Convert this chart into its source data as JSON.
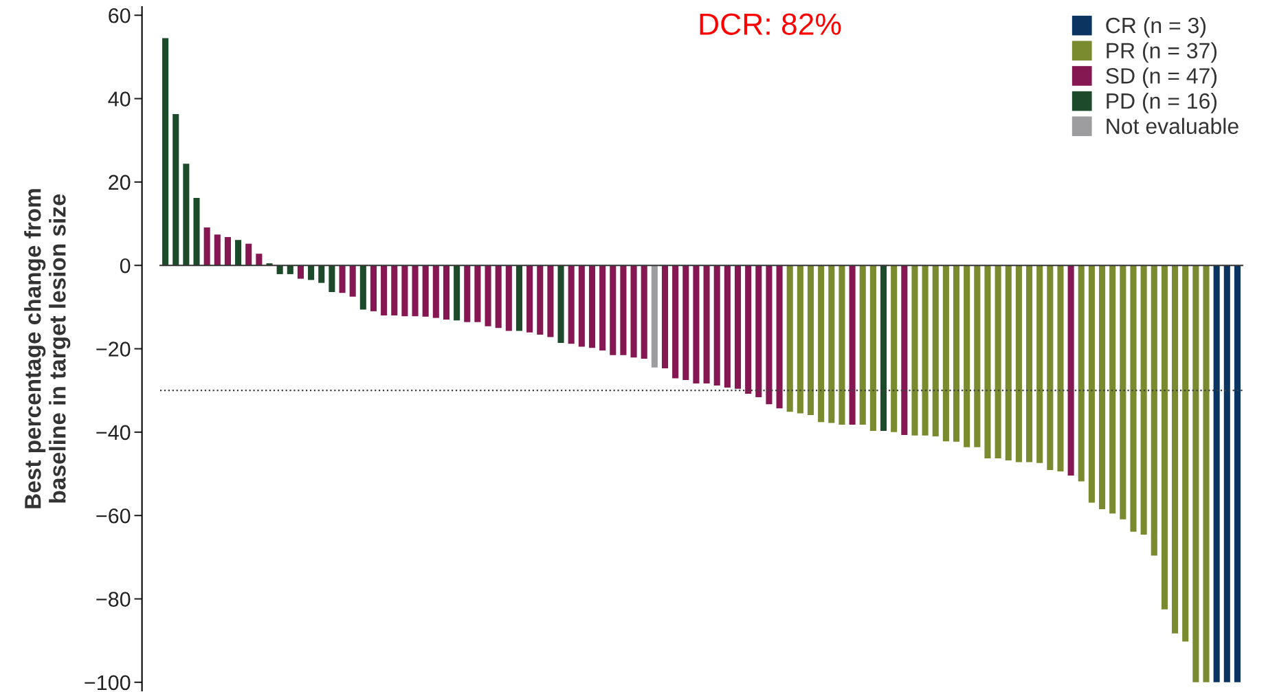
{
  "chart_data": {
    "type": "bar",
    "ylabel": "Best percentage change from\nbaseline in target lesion size",
    "annotations": [
      "DCR: 82%"
    ],
    "categories": [
      null,
      null,
      null,
      null,
      null,
      null,
      null,
      null,
      null,
      null,
      null,
      null,
      null,
      null,
      null,
      null,
      null,
      null,
      null,
      null,
      null,
      null,
      null,
      null,
      null,
      null,
      null,
      null,
      null,
      null,
      null,
      null,
      null,
      null,
      null,
      null,
      null,
      null,
      null,
      null,
      null,
      null,
      null,
      null,
      null,
      null,
      null,
      null,
      null,
      null,
      null,
      null,
      null,
      null,
      null,
      null,
      null,
      null,
      null,
      null,
      null,
      null,
      null,
      null,
      null,
      null,
      null,
      null,
      null,
      null,
      null,
      null,
      null,
      null,
      null,
      null,
      null,
      null,
      null,
      null,
      null,
      null,
      null,
      null,
      null,
      null,
      null,
      null,
      null,
      null,
      null,
      null,
      null,
      null,
      null,
      null,
      null,
      null,
      null,
      null,
      null,
      null,
      null,
      null
    ],
    "series": [
      {
        "name": "CR (n = 3)",
        "color": "#0b3560",
        "values": [
          null,
          null,
          null,
          null,
          null,
          null,
          null,
          null,
          null,
          null,
          null,
          null,
          null,
          null,
          null,
          null,
          null,
          null,
          null,
          null,
          null,
          null,
          null,
          null,
          null,
          null,
          null,
          null,
          null,
          null,
          null,
          null,
          null,
          null,
          null,
          null,
          null,
          null,
          null,
          null,
          null,
          null,
          null,
          null,
          null,
          null,
          null,
          null,
          null,
          null,
          null,
          null,
          null,
          null,
          null,
          null,
          null,
          null,
          null,
          null,
          null,
          null,
          null,
          null,
          null,
          null,
          null,
          null,
          null,
          null,
          null,
          null,
          null,
          null,
          null,
          null,
          null,
          null,
          null,
          null,
          null,
          null,
          null,
          null,
          null,
          null,
          null,
          null,
          null,
          null,
          null,
          null,
          null,
          null,
          null,
          null,
          null,
          null,
          null,
          null,
          null,
          -100,
          -100,
          -100
        ]
      },
      {
        "name": "PR (n = 37)",
        "color": "#7a8a2e",
        "values": [
          null,
          null,
          null,
          null,
          null,
          null,
          null,
          null,
          null,
          null,
          null,
          null,
          null,
          null,
          null,
          null,
          null,
          null,
          null,
          null,
          null,
          null,
          null,
          null,
          null,
          null,
          null,
          null,
          null,
          null,
          null,
          null,
          null,
          null,
          null,
          null,
          null,
          null,
          null,
          null,
          null,
          null,
          null,
          null,
          null,
          null,
          null,
          null,
          null,
          null,
          null,
          null,
          null,
          null,
          null,
          null,
          null,
          null,
          null,
          null,
          -35.1,
          -35.5,
          -35.9,
          -37.6,
          -37.8,
          -38.2,
          null,
          -38.2,
          -39.7,
          null,
          -40.0,
          null,
          -40.8,
          -40.8,
          -41.0,
          -42.2,
          -42.3,
          -43.6,
          -43.6,
          -46.3,
          -46.3,
          -46.8,
          -47.2,
          -47.2,
          -47.4,
          -49.1,
          -49.4,
          null,
          -51.8,
          -56.9,
          -58.5,
          -59.5,
          -60.9,
          -63.9,
          -64.6,
          -69.6,
          -82.5,
          -88.3,
          -90.2,
          -100,
          -100,
          null,
          null,
          null
        ]
      },
      {
        "name": "SD (n = 47)",
        "color": "#851852",
        "values": [
          null,
          null,
          null,
          null,
          9.1,
          7.4,
          6.8,
          null,
          5.2,
          2.8,
          null,
          null,
          null,
          -3.2,
          null,
          null,
          null,
          -6.6,
          -7.5,
          null,
          -11.0,
          -12.0,
          -12.0,
          -12.2,
          -12.2,
          -12.3,
          -12.6,
          -13.0,
          null,
          -13.6,
          -13.6,
          -14.6,
          -15.0,
          -15.7,
          null,
          -16.1,
          -16.6,
          -17.2,
          null,
          -18.8,
          -19.5,
          -19.8,
          -20.4,
          -21.5,
          -21.5,
          -22.1,
          -22.4,
          null,
          -24.7,
          -27.1,
          -27.5,
          -28.3,
          -28.3,
          -28.8,
          -29.3,
          -29.6,
          -30.8,
          -31.6,
          -33.3,
          -34.3,
          null,
          null,
          null,
          null,
          null,
          null,
          -38.2,
          null,
          null,
          null,
          null,
          -40.7,
          null,
          null,
          null,
          null,
          null,
          null,
          null,
          null,
          null,
          null,
          null,
          null,
          null,
          null,
          null,
          -50.4,
          null,
          null,
          null,
          null,
          null,
          null,
          null,
          null,
          null,
          null,
          null,
          null,
          null,
          null,
          null,
          null
        ]
      },
      {
        "name": "PD (n = 16)",
        "color": "#1d4a2a",
        "values": [
          54.5,
          36.3,
          24.4,
          16.2,
          null,
          null,
          null,
          6.1,
          null,
          null,
          0.5,
          -2.1,
          -2.1,
          null,
          -3.5,
          -4.2,
          -6.4,
          null,
          null,
          -10.6,
          null,
          null,
          null,
          null,
          null,
          null,
          null,
          null,
          -13.2,
          null,
          null,
          null,
          null,
          null,
          -15.7,
          null,
          null,
          null,
          -18.6,
          null,
          null,
          null,
          null,
          null,
          null,
          null,
          null,
          null,
          null,
          null,
          null,
          null,
          null,
          null,
          null,
          null,
          null,
          null,
          null,
          null,
          null,
          null,
          null,
          null,
          null,
          null,
          null,
          null,
          null,
          -39.7,
          null,
          null,
          null,
          null,
          null,
          null,
          null,
          null,
          null,
          null,
          null,
          null,
          null,
          null,
          null,
          null,
          null,
          null,
          null,
          null,
          null,
          null,
          null,
          null,
          null,
          null,
          null,
          null,
          null,
          null,
          null,
          null,
          null,
          null
        ]
      },
      {
        "name": "Not evaluable",
        "color": "#9d9d9f",
        "values": [
          null,
          null,
          null,
          null,
          null,
          null,
          null,
          null,
          null,
          null,
          null,
          null,
          null,
          null,
          null,
          null,
          null,
          null,
          null,
          null,
          null,
          null,
          null,
          null,
          null,
          null,
          null,
          null,
          null,
          null,
          null,
          null,
          null,
          null,
          null,
          null,
          null,
          null,
          null,
          null,
          null,
          null,
          null,
          null,
          null,
          null,
          null,
          -24.5,
          null,
          null,
          null,
          null,
          null,
          null,
          null,
          null,
          null,
          null,
          null,
          null,
          null,
          null,
          null,
          null,
          null,
          null,
          null,
          null,
          null,
          null,
          null,
          null,
          null,
          null,
          null,
          null,
          null,
          null,
          null,
          null,
          null,
          null,
          null,
          null,
          null,
          null,
          null,
          null,
          null,
          null,
          null,
          null,
          null,
          null,
          null,
          null,
          null,
          null,
          null,
          null,
          null,
          null,
          null,
          null
        ]
      }
    ],
    "ylim": [
      -102,
      62
    ],
    "yticks": [
      {
        "value": -100,
        "label": "−100"
      },
      {
        "value": -80,
        "label": "−80"
      },
      {
        "value": -60,
        "label": "−60"
      },
      {
        "value": -40,
        "label": "−40"
      },
      {
        "value": -20,
        "label": "−20"
      },
      0,
      20,
      40,
      60
    ],
    "ref_lines": [
      {
        "axis": "y",
        "value": -30,
        "color": "#404040",
        "line_style": "dotted"
      }
    ],
    "legend": "top right"
  }
}
